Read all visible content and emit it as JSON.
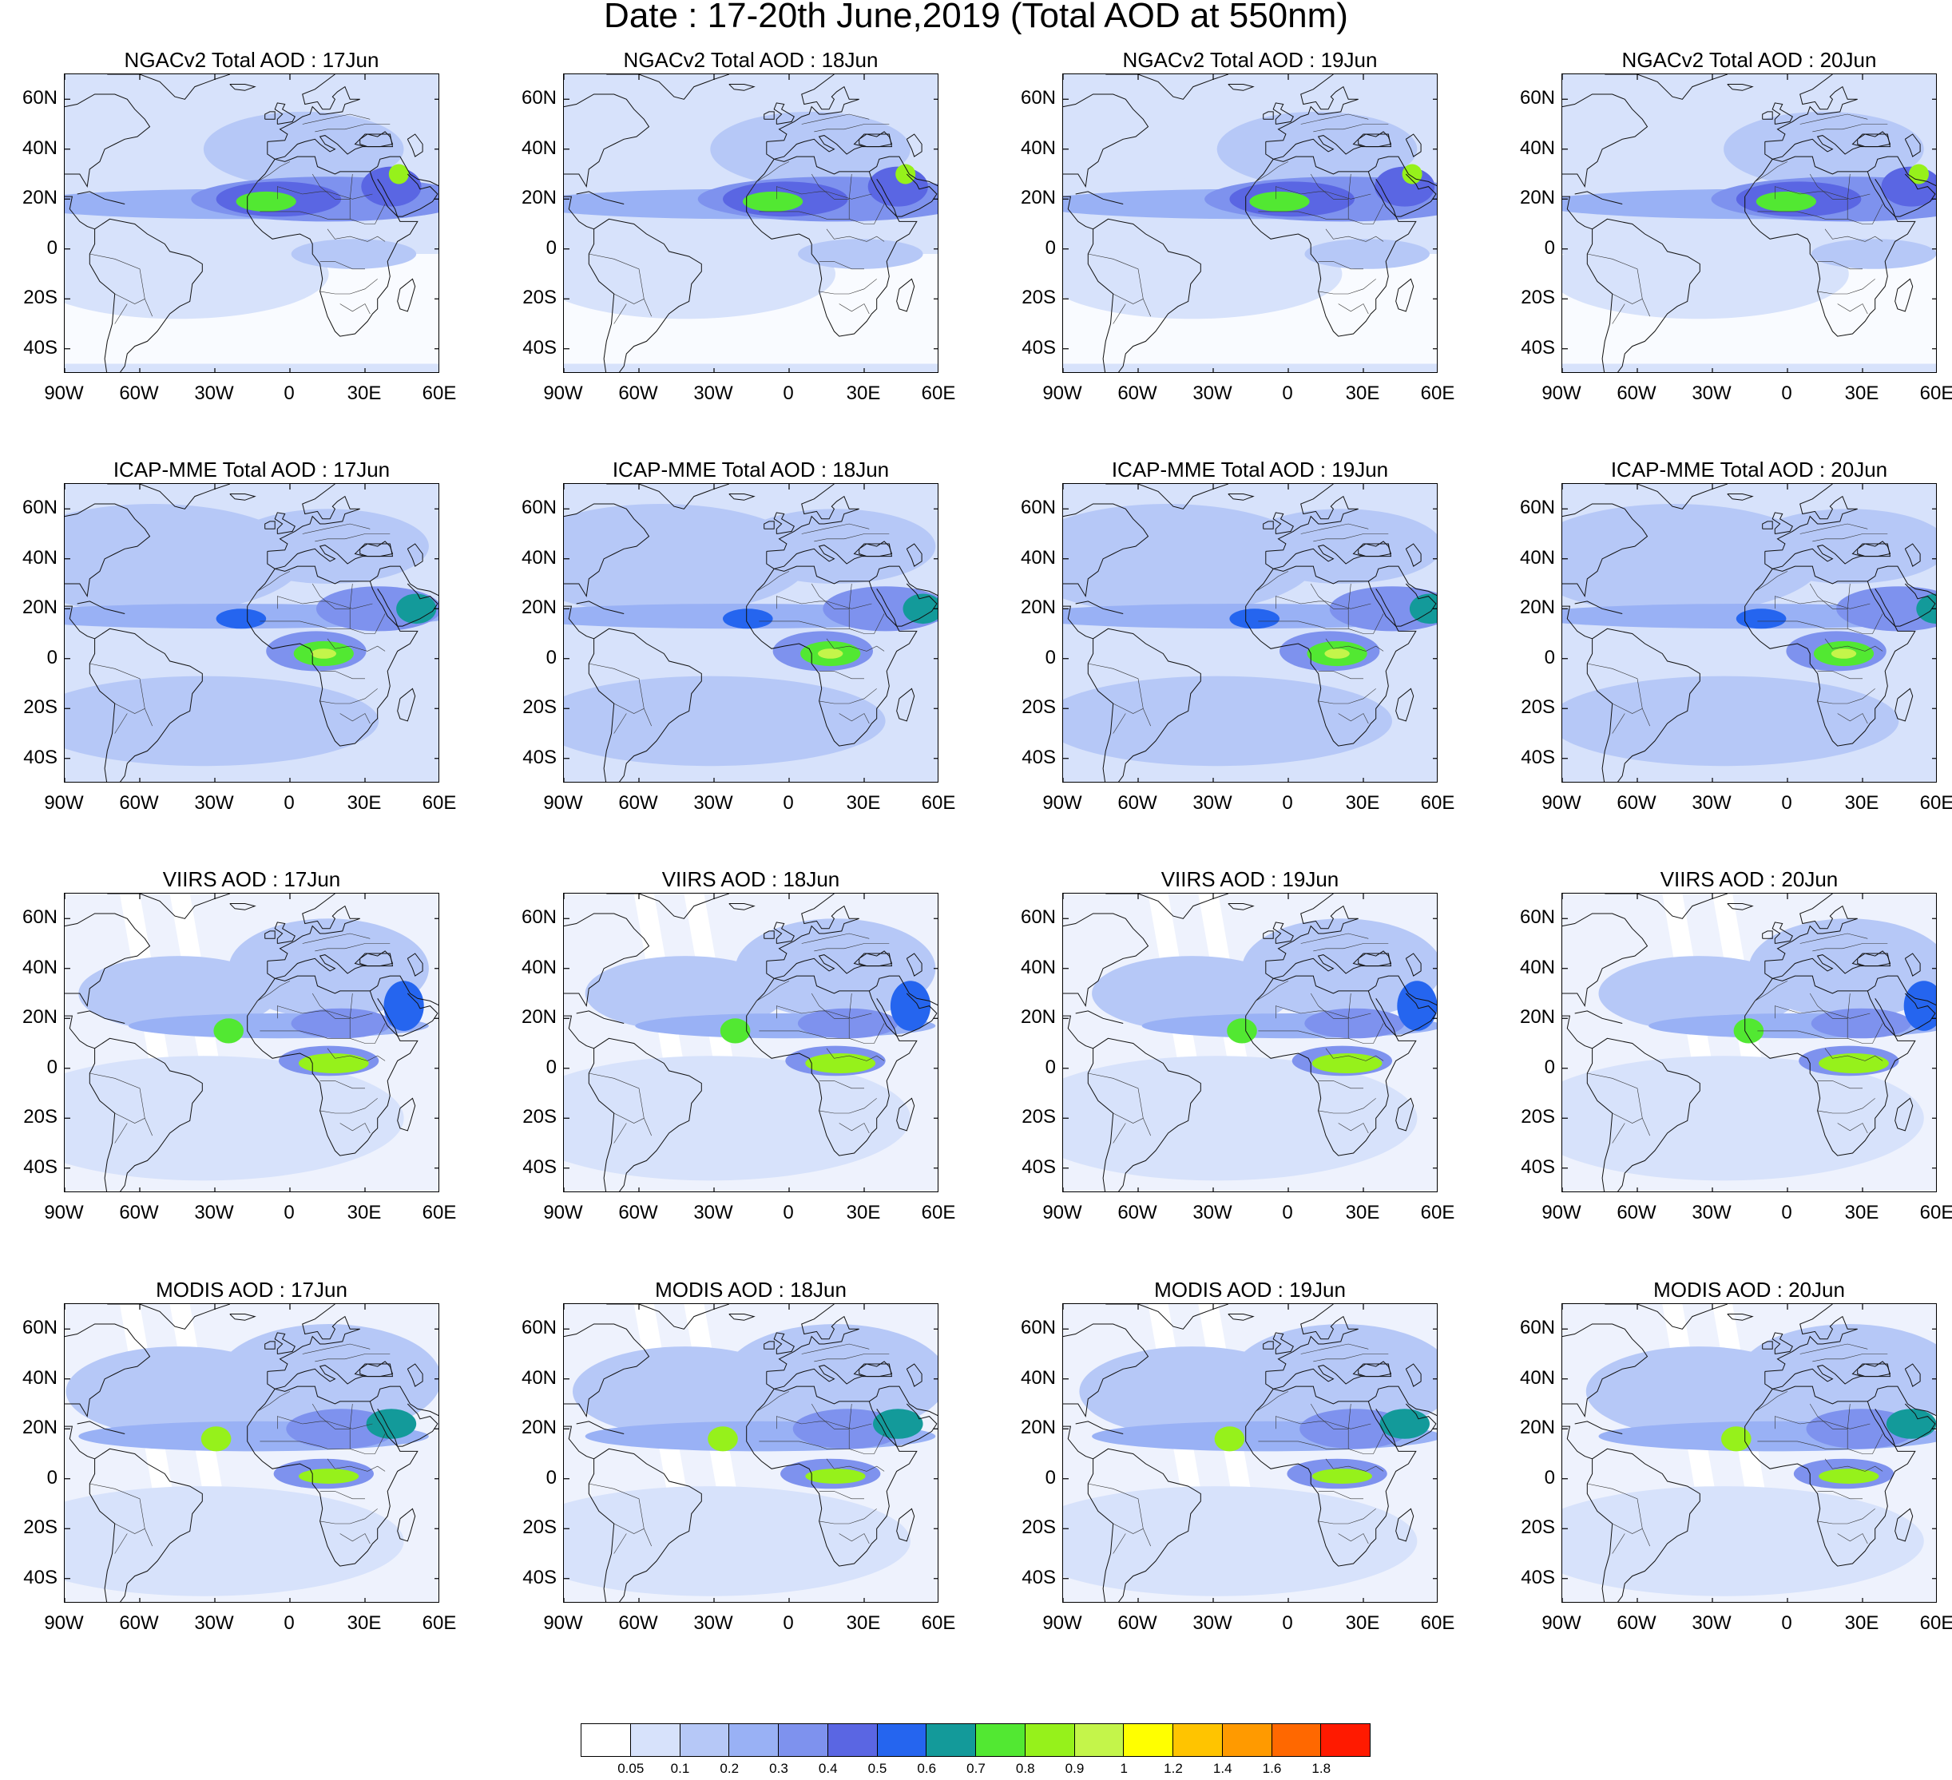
{
  "title": "Date : 17-20th June,2019 (Total AOD at 550nm)",
  "lat_labels": [
    "60N",
    "40N",
    "20N",
    "0",
    "20S",
    "40S"
  ],
  "lon_labels": [
    "90W",
    "60W",
    "30W",
    "0",
    "30E",
    "60E"
  ],
  "panels": [
    {
      "title": "NGACv2 Total AOD : 17Jun"
    },
    {
      "title": "NGACv2 Total AOD : 18Jun"
    },
    {
      "title": "NGACv2 Total AOD : 19Jun"
    },
    {
      "title": "NGACv2 Total AOD : 20Jun"
    },
    {
      "title": "ICAP-MME Total AOD : 17Jun"
    },
    {
      "title": "ICAP-MME Total AOD : 18Jun"
    },
    {
      "title": "ICAP-MME Total AOD : 19Jun"
    },
    {
      "title": "ICAP-MME Total AOD : 20Jun"
    },
    {
      "title": "VIIRS AOD : 17Jun"
    },
    {
      "title": "VIIRS AOD : 18Jun"
    },
    {
      "title": "VIIRS AOD : 19Jun"
    },
    {
      "title": "VIIRS AOD : 20Jun"
    },
    {
      "title": "MODIS AOD : 17Jun"
    },
    {
      "title": "MODIS AOD : 18Jun"
    },
    {
      "title": "MODIS AOD : 19Jun"
    },
    {
      "title": "MODIS AOD : 20Jun"
    }
  ],
  "colorbar": {
    "labels": [
      "0.05",
      "0.1",
      "0.2",
      "0.3",
      "0.4",
      "0.5",
      "0.6",
      "0.7",
      "0.8",
      "0.9",
      "1",
      "1.2",
      "1.4",
      "1.6",
      "1.8"
    ],
    "colors": [
      "#ffffff",
      "#d7e2fb",
      "#b6c8f7",
      "#99b1f5",
      "#7e92ee",
      "#5a66e3",
      "#2565ef",
      "#139a9a",
      "#52e832",
      "#96f11b",
      "#c4f54a",
      "#ffff00",
      "#ffc400",
      "#ff9a00",
      "#ff6800",
      "#ff1a00"
    ]
  }
}
